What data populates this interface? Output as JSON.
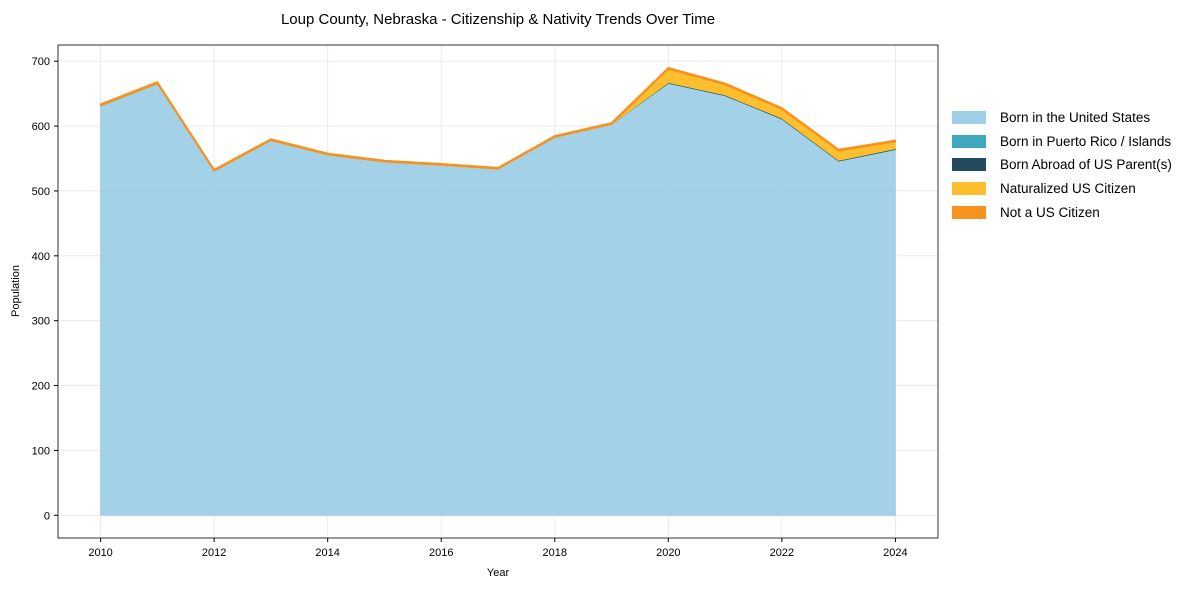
{
  "chart_data": {
    "type": "area",
    "stacked": true,
    "title": "Loup County, Nebraska - Citizenship & Nativity Trends Over Time",
    "xlabel": "Year",
    "ylabel": "Population",
    "xlim": [
      2009.25,
      2024.75
    ],
    "ylim": [
      -35,
      725
    ],
    "xticks": [
      2010,
      2012,
      2014,
      2016,
      2018,
      2020,
      2022,
      2024
    ],
    "yticks": [
      0,
      100,
      200,
      300,
      400,
      500,
      600,
      700
    ],
    "grid": true,
    "legend_position": "right",
    "x": [
      2010,
      2011,
      2012,
      2013,
      2014,
      2015,
      2016,
      2017,
      2018,
      2019,
      2020,
      2021,
      2022,
      2023,
      2024
    ],
    "series": [
      {
        "name": "Born in the United States",
        "color": "#9ecfe6",
        "values": [
          631,
          665,
          531,
          578,
          556,
          545,
          540,
          534,
          583,
          603,
          666,
          647,
          611,
          546,
          564
        ]
      },
      {
        "name": "Born in Puerto Rico / Islands",
        "color": "#3ea8c0",
        "values": [
          0,
          0,
          0,
          0,
          0,
          0,
          0,
          0,
          0,
          0,
          0,
          0,
          0,
          0,
          0
        ]
      },
      {
        "name": "Born Abroad of US Parent(s)",
        "color": "#234a5e",
        "values": [
          0,
          0,
          0,
          0,
          0,
          0,
          0,
          0,
          0,
          0,
          1,
          1,
          1,
          1,
          1
        ]
      },
      {
        "name": "Naturalized US Citizen",
        "color": "#fdbf2d",
        "values": [
          1,
          1,
          0,
          0,
          0,
          0,
          0,
          0,
          0,
          0,
          21,
          16,
          14,
          15,
          11
        ]
      },
      {
        "name": "Not a US Citizen",
        "color": "#f7921e",
        "values": [
          2,
          2,
          2,
          2,
          2,
          2,
          2,
          2,
          2,
          2,
          2,
          2,
          2,
          2,
          2
        ]
      }
    ]
  }
}
